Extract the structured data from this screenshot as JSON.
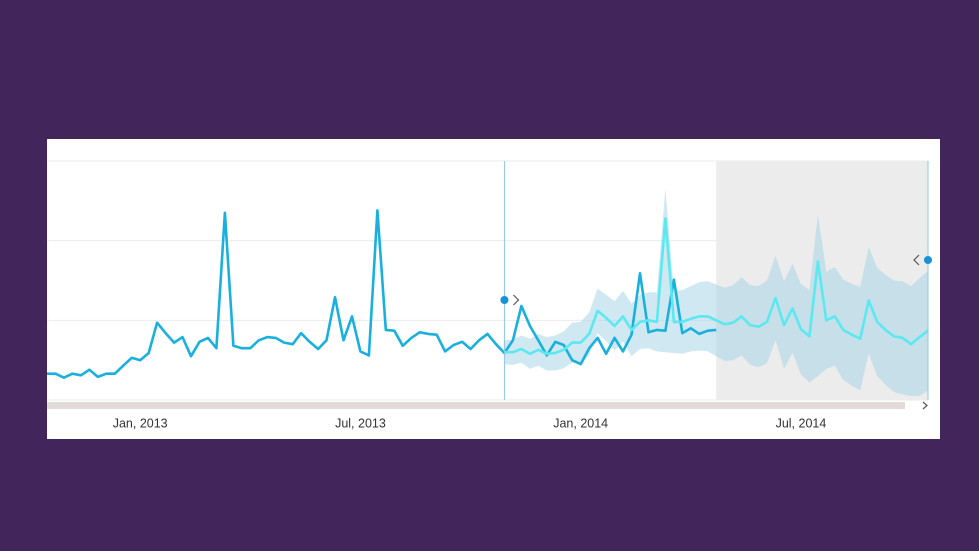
{
  "chart_data": {
    "type": "line",
    "xlim": [
      -11,
      93
    ],
    "ylim": [
      0,
      3
    ],
    "xticks": [
      {
        "value": 0,
        "label": "Jan, 2013"
      },
      {
        "value": 26,
        "label": "Jul, 2013"
      },
      {
        "value": 52,
        "label": "Jan, 2014"
      },
      {
        "value": 78,
        "label": "Jul, 2014"
      }
    ],
    "yticks": [
      0,
      1,
      2,
      3
    ],
    "grid": true,
    "forecast_start": 43,
    "highlight_range": [
      68,
      93
    ],
    "series": [
      {
        "color": "#1ab0de",
        "x": [
          -11,
          -10,
          -9,
          -8,
          -7,
          -6,
          -5,
          -4,
          -3,
          -2,
          -1,
          0,
          1,
          2,
          3,
          4,
          5,
          6,
          7,
          8,
          9,
          10,
          11,
          12,
          13,
          14,
          15,
          16,
          17,
          18,
          19,
          20,
          21,
          22,
          23,
          24,
          25,
          26,
          27,
          28,
          29,
          30,
          31,
          32,
          33,
          34,
          35,
          36,
          37,
          38,
          39,
          40,
          41,
          42,
          43,
          44,
          45,
          46,
          47,
          48,
          49,
          50,
          51,
          52,
          53,
          54,
          55,
          56,
          57,
          58,
          59,
          60,
          61,
          62,
          63,
          64,
          65,
          66,
          67,
          68
        ],
        "values": [
          0.33,
          0.33,
          0.28,
          0.33,
          0.31,
          0.38,
          0.29,
          0.33,
          0.33,
          0.43,
          0.53,
          0.5,
          0.59,
          0.97,
          0.84,
          0.72,
          0.79,
          0.55,
          0.73,
          0.78,
          0.65,
          2.35,
          0.68,
          0.65,
          0.65,
          0.75,
          0.79,
          0.78,
          0.72,
          0.7,
          0.84,
          0.73,
          0.64,
          0.75,
          1.29,
          0.75,
          1.05,
          0.61,
          0.56,
          2.38,
          0.88,
          0.87,
          0.68,
          0.78,
          0.85,
          0.83,
          0.82,
          0.61,
          0.69,
          0.73,
          0.64,
          0.75,
          0.83,
          0.7,
          0.59,
          0.75,
          1.18,
          0.93,
          0.75,
          0.56,
          0.73,
          0.69,
          0.5,
          0.45,
          0.65,
          0.78,
          0.58,
          0.78,
          0.61,
          0.82,
          1.59,
          0.85,
          0.88,
          0.87,
          1.51,
          0.84,
          0.9,
          0.83,
          0.87,
          0.88
        ]
      },
      {
        "color": "#5ce8f0",
        "band_color": "#a9d6e5",
        "x": [
          43,
          44,
          45,
          46,
          47,
          48,
          49,
          50,
          51,
          52,
          53,
          54,
          55,
          56,
          57,
          58,
          59,
          60,
          61,
          62,
          63,
          64,
          65,
          66,
          67,
          68,
          69,
          70,
          71,
          72,
          73,
          74,
          75,
          76,
          77,
          78,
          79,
          80,
          81,
          82,
          83,
          84,
          85,
          86,
          87,
          88,
          89,
          90,
          91,
          92,
          93
        ],
        "values": [
          0.6,
          0.6,
          0.64,
          0.58,
          0.63,
          0.58,
          0.59,
          0.63,
          0.72,
          0.72,
          0.83,
          1.12,
          1.03,
          0.93,
          1.05,
          0.88,
          0.98,
          1.0,
          0.98,
          2.28,
          0.98,
          0.98,
          1.02,
          1.05,
          1.05,
          1.0,
          0.95,
          0.97,
          1.05,
          0.94,
          0.92,
          0.98,
          1.28,
          0.94,
          1.15,
          0.89,
          0.8,
          1.74,
          1.0,
          1.05,
          0.88,
          0.82,
          0.77,
          1.25,
          0.98,
          0.88,
          0.8,
          0.78,
          0.7,
          0.79,
          0.87
        ],
        "upper": [
          0.75,
          0.76,
          0.81,
          0.77,
          0.83,
          0.79,
          0.81,
          0.86,
          0.97,
          0.98,
          1.1,
          1.4,
          1.32,
          1.24,
          1.37,
          1.21,
          1.32,
          1.35,
          1.35,
          2.66,
          1.37,
          1.38,
          1.43,
          1.48,
          1.49,
          1.45,
          1.41,
          1.44,
          1.54,
          1.44,
          1.43,
          1.5,
          1.81,
          1.49,
          1.71,
          1.46,
          1.38,
          2.33,
          1.61,
          1.67,
          1.51,
          1.46,
          1.42,
          1.92,
          1.66,
          1.57,
          1.5,
          1.49,
          1.43,
          1.53,
          1.62
        ],
        "lower": [
          0.45,
          0.44,
          0.47,
          0.39,
          0.43,
          0.37,
          0.37,
          0.4,
          0.47,
          0.46,
          0.56,
          0.84,
          0.74,
          0.62,
          0.73,
          0.55,
          0.64,
          0.65,
          0.61,
          0.6,
          0.59,
          0.58,
          0.61,
          0.62,
          0.61,
          0.55,
          0.49,
          0.5,
          0.56,
          0.44,
          0.41,
          0.46,
          0.75,
          0.39,
          0.59,
          0.32,
          0.22,
          0.3,
          0.39,
          0.43,
          0.25,
          0.18,
          0.12,
          0.58,
          0.3,
          0.19,
          0.1,
          0.07,
          0.05,
          0.05,
          0.12
        ]
      }
    ]
  }
}
